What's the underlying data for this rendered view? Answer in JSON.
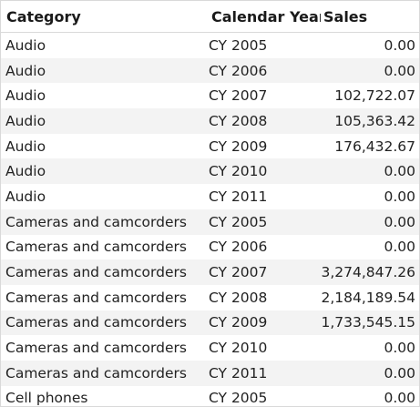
{
  "table": {
    "headers": {
      "category": "Category",
      "calendar_year": "Calendar Year",
      "sales": "Sales"
    },
    "rows": [
      {
        "category": "Audio",
        "year": "CY 2005",
        "sales": "0.00"
      },
      {
        "category": "Audio",
        "year": "CY 2006",
        "sales": "0.00"
      },
      {
        "category": "Audio",
        "year": "CY 2007",
        "sales": "102,722.07"
      },
      {
        "category": "Audio",
        "year": "CY 2008",
        "sales": "105,363.42"
      },
      {
        "category": "Audio",
        "year": "CY 2009",
        "sales": "176,432.67"
      },
      {
        "category": "Audio",
        "year": "CY 2010",
        "sales": "0.00"
      },
      {
        "category": "Audio",
        "year": "CY 2011",
        "sales": "0.00"
      },
      {
        "category": "Cameras and camcorders",
        "year": "CY 2005",
        "sales": "0.00"
      },
      {
        "category": "Cameras and camcorders",
        "year": "CY 2006",
        "sales": "0.00"
      },
      {
        "category": "Cameras and camcorders",
        "year": "CY 2007",
        "sales": "3,274,847.26"
      },
      {
        "category": "Cameras and camcorders",
        "year": "CY 2008",
        "sales": "2,184,189.54"
      },
      {
        "category": "Cameras and camcorders",
        "year": "CY 2009",
        "sales": "1,733,545.15"
      },
      {
        "category": "Cameras and camcorders",
        "year": "CY 2010",
        "sales": "0.00"
      },
      {
        "category": "Cameras and camcorders",
        "year": "CY 2011",
        "sales": "0.00"
      },
      {
        "category": "Cell phones",
        "year": "CY 2005",
        "sales": "0.00"
      }
    ]
  }
}
